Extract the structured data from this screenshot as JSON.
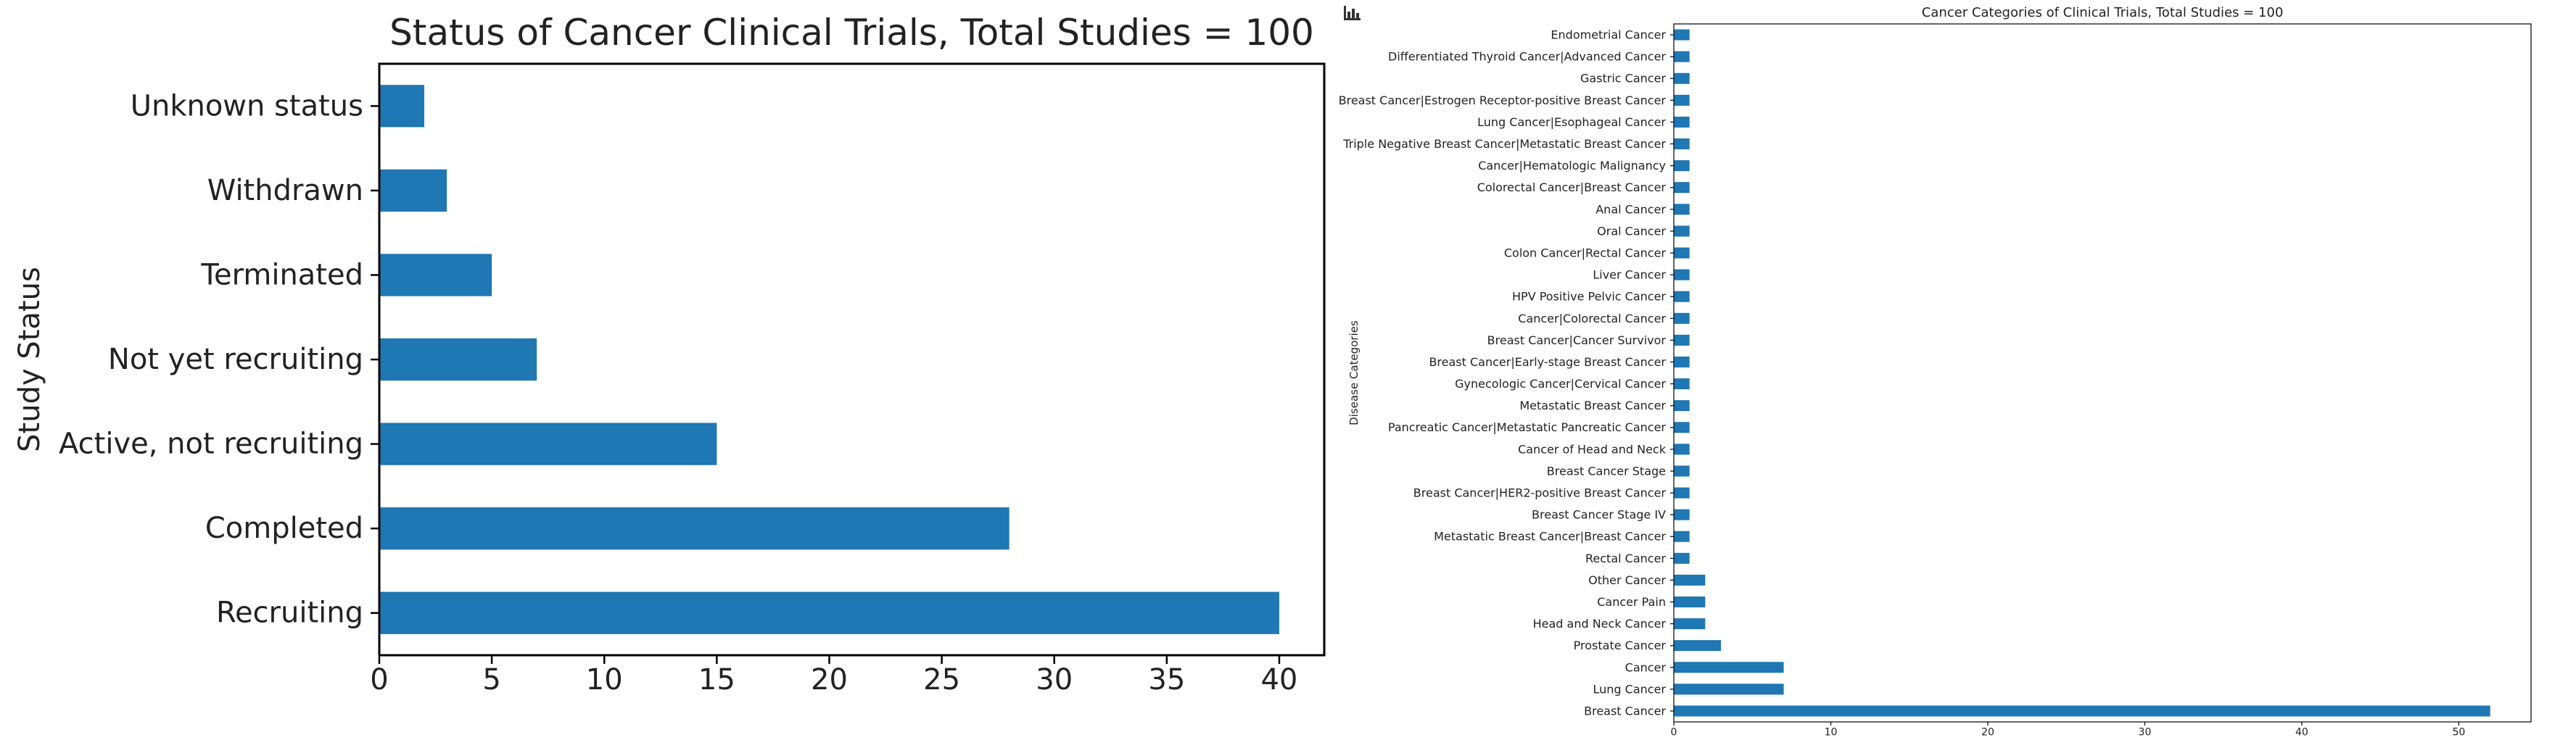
{
  "chart_data": [
    {
      "type": "bar",
      "orientation": "horizontal",
      "title": "Status of Cancer Clinical Trials, Total Studies = 100",
      "xlabel": "",
      "ylabel": "Study Status",
      "categories": [
        "Recruiting",
        "Completed",
        "Active, not recruiting",
        "Not yet recruiting",
        "Terminated",
        "Withdrawn",
        "Unknown status"
      ],
      "values": [
        40,
        28,
        15,
        7,
        5,
        3,
        2
      ],
      "xlim": [
        0,
        42
      ],
      "xticks": [
        0,
        5,
        10,
        15,
        20,
        25,
        30,
        35,
        40
      ],
      "grid": false,
      "color": "#1f77b4"
    },
    {
      "type": "bar",
      "orientation": "horizontal",
      "title": "Cancer Categories of Clinical Trials, Total Studies = 100",
      "xlabel": "",
      "ylabel": "Disease Categories",
      "categories": [
        "Breast Cancer",
        "Lung Cancer",
        "Cancer",
        "Prostate Cancer",
        "Head and Neck Cancer",
        "Cancer Pain",
        "Other Cancer",
        "Rectal Cancer",
        "Metastatic Breast Cancer|Breast Cancer",
        "Breast Cancer Stage IV",
        "Breast Cancer|HER2-positive Breast Cancer",
        "Breast Cancer Stage",
        "Cancer of Head and Neck",
        "Pancreatic Cancer|Metastatic Pancreatic Cancer",
        "Metastatic Breast Cancer",
        "Gynecologic Cancer|Cervical Cancer",
        "Breast Cancer|Early-stage Breast Cancer",
        "Breast Cancer|Cancer Survivor",
        "Cancer|Colorectal Cancer",
        "HPV Positive Pelvic Cancer",
        "Liver Cancer",
        "Colon Cancer|Rectal Cancer",
        "Oral Cancer",
        "Anal Cancer",
        "Colorectal Cancer|Breast Cancer",
        "Cancer|Hematologic Malignancy",
        "Triple Negative Breast Cancer|Metastatic Breast Cancer",
        "Lung Cancer|Esophageal Cancer",
        "Breast Cancer|Estrogen Receptor-positive Breast Cancer",
        "Gastric Cancer",
        "Differentiated Thyroid Cancer|Advanced Cancer",
        "Endometrial Cancer"
      ],
      "values": [
        52,
        7,
        7,
        3,
        2,
        2,
        2,
        1,
        1,
        1,
        1,
        1,
        1,
        1,
        1,
        1,
        1,
        1,
        1,
        1,
        1,
        1,
        1,
        1,
        1,
        1,
        1,
        1,
        1,
        1,
        1,
        1
      ],
      "xlim": [
        0,
        54.6
      ],
      "xticks": [
        0,
        10,
        20,
        30,
        40,
        50
      ],
      "grid": false,
      "color": "#1f77b4"
    }
  ],
  "icons": {
    "toolbar": "bar-chart-icon"
  },
  "colors": {
    "bar": "#1f77b4",
    "axis": "#000000",
    "text": "#222222"
  }
}
